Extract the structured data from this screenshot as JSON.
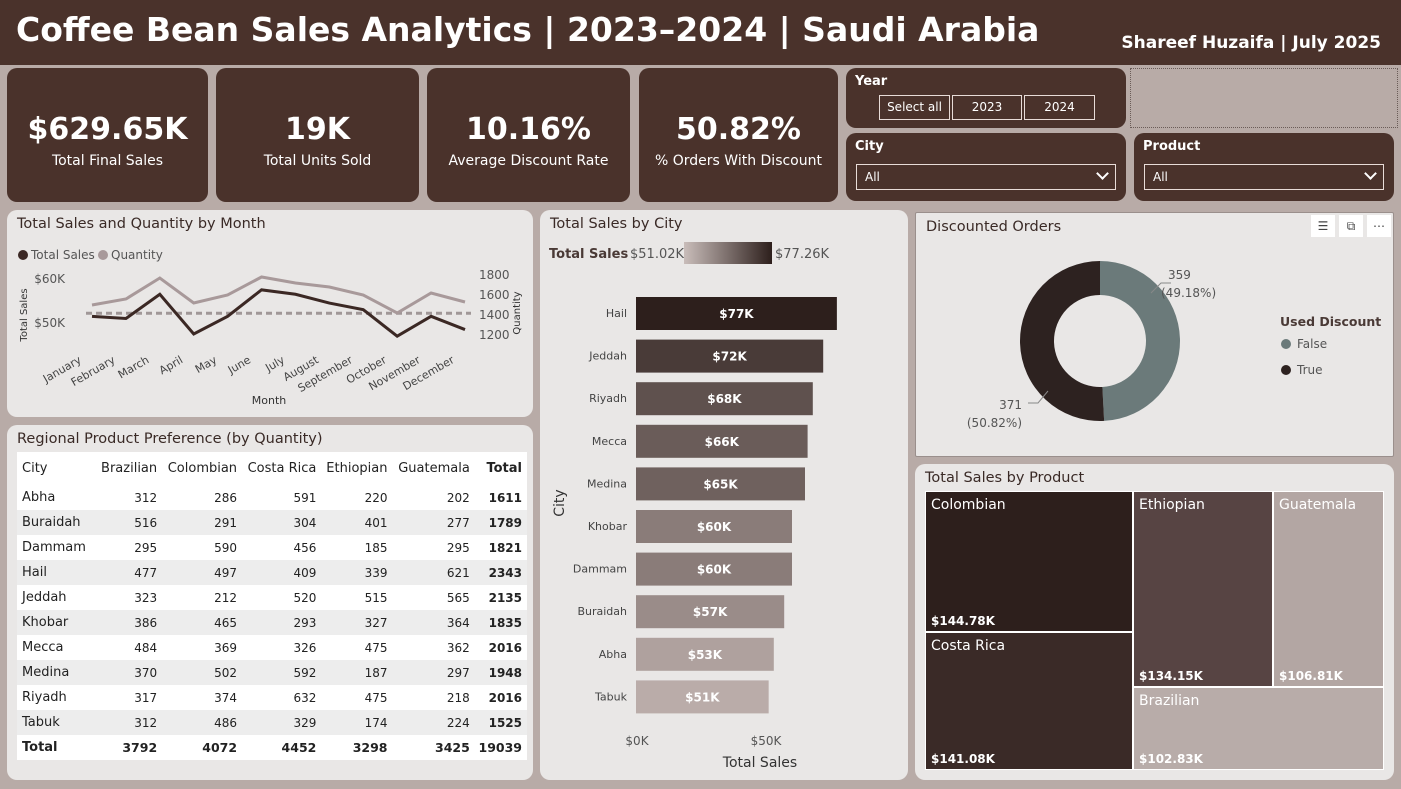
{
  "header": {
    "title": "Coffee Bean Sales Analytics | 2023–2024 | Saudi Arabia",
    "author": "Shareef Huzaifa | July 2025"
  },
  "kpis": [
    {
      "value": "$629.65K",
      "label": "Total Final Sales"
    },
    {
      "value": "19K",
      "label": "Total Units Sold"
    },
    {
      "value": "10.16%",
      "label": "Average Discount Rate"
    },
    {
      "value": "50.82%",
      "label": "% Orders With Discount"
    }
  ],
  "slicers": {
    "year": {
      "title": "Year",
      "options": [
        "Select all",
        "2023",
        "2024"
      ]
    },
    "city": {
      "title": "City",
      "value": "All"
    },
    "product": {
      "title": "Product",
      "value": "All"
    }
  },
  "colors": {
    "dark": "#4a322b",
    "sales_line": "#3b2824",
    "qty_line": "#a8999a",
    "teal": "#6b7a7a",
    "black": "#2d2220"
  },
  "chart_data": [
    {
      "type": "line",
      "title": "Total Sales and Quantity by Month",
      "xlabel": "Month",
      "ylabel": "Total Sales",
      "y2label": "Quantity",
      "categories": [
        "January",
        "February",
        "March",
        "April",
        "May",
        "June",
        "July",
        "August",
        "September",
        "October",
        "November",
        "December"
      ],
      "series": [
        {
          "name": "Total Sales",
          "values": [
            51.5,
            51.0,
            56.5,
            47.5,
            51.5,
            57.5,
            56.5,
            54.5,
            53.0,
            47.0,
            51.5,
            48.5
          ]
        },
        {
          "name": "Quantity",
          "values": [
            1500,
            1560,
            1770,
            1520,
            1600,
            1780,
            1720,
            1680,
            1600,
            1420,
            1620,
            1530
          ]
        }
      ],
      "ylim": [
        45,
        62
      ],
      "y2lim": [
        1100,
        1850
      ],
      "yticks": [
        "$60K",
        "$50K"
      ],
      "y2ticks": [
        "1800",
        "1600",
        "1400",
        "1200"
      ],
      "legend": "top-left"
    },
    {
      "type": "bar",
      "orientation": "horizontal",
      "title": "Total Sales by City",
      "xlabel": "Total Sales",
      "ylabel": "City",
      "categories": [
        "Hail",
        "Jeddah",
        "Riyadh",
        "Mecca",
        "Medina",
        "Khobar",
        "Dammam",
        "Buraidah",
        "Abha",
        "Tabuk"
      ],
      "values": [
        77.26,
        72,
        68,
        66,
        65,
        60,
        60,
        57,
        53,
        51.02
      ],
      "labels": [
        "$77K",
        "$72K",
        "$68K",
        "$66K",
        "$65K",
        "$60K",
        "$60K",
        "$57K",
        "$53K",
        "$51K"
      ],
      "xticks": [
        "$0K",
        "$50K"
      ],
      "color_scale": {
        "title": "Total Sales",
        "min": "$51.02K",
        "max": "$77.26K"
      }
    },
    {
      "type": "pie",
      "title": "Discounted Orders",
      "legend_title": "Used Discount",
      "slices": [
        {
          "name": "False",
          "value": 359,
          "label": "359",
          "pct": "(49.18%)"
        },
        {
          "name": "True",
          "value": 371,
          "label": "371",
          "pct": "(50.82%)"
        }
      ],
      "legend": "right"
    },
    {
      "type": "treemap",
      "title": "Total Sales by Product",
      "items": [
        {
          "name": "Colombian",
          "value": "$144.78K"
        },
        {
          "name": "Costa Rica",
          "value": "$141.08K"
        },
        {
          "name": "Ethiopian",
          "value": "$134.15K"
        },
        {
          "name": "Guatemala",
          "value": "$106.81K"
        },
        {
          "name": "Brazilian",
          "value": "$102.83K"
        }
      ]
    }
  ],
  "table": {
    "title": "Regional Product Preference (by Quantity)",
    "columns": [
      "City",
      "Brazilian",
      "Colombian",
      "Costa Rica",
      "Ethiopian",
      "Guatemala",
      "Total"
    ],
    "rows": [
      [
        "Abha",
        "312",
        "286",
        "591",
        "220",
        "202",
        "1611"
      ],
      [
        "Buraidah",
        "516",
        "291",
        "304",
        "401",
        "277",
        "1789"
      ],
      [
        "Dammam",
        "295",
        "590",
        "456",
        "185",
        "295",
        "1821"
      ],
      [
        "Hail",
        "477",
        "497",
        "409",
        "339",
        "621",
        "2343"
      ],
      [
        "Jeddah",
        "323",
        "212",
        "520",
        "515",
        "565",
        "2135"
      ],
      [
        "Khobar",
        "386",
        "465",
        "293",
        "327",
        "364",
        "1835"
      ],
      [
        "Mecca",
        "484",
        "369",
        "326",
        "475",
        "362",
        "2016"
      ],
      [
        "Medina",
        "370",
        "502",
        "592",
        "187",
        "297",
        "1948"
      ],
      [
        "Riyadh",
        "317",
        "374",
        "632",
        "475",
        "218",
        "2016"
      ],
      [
        "Tabuk",
        "312",
        "486",
        "329",
        "174",
        "224",
        "1525"
      ]
    ],
    "total": [
      "Total",
      "3792",
      "4072",
      "4452",
      "3298",
      "3425",
      "19039"
    ]
  }
}
